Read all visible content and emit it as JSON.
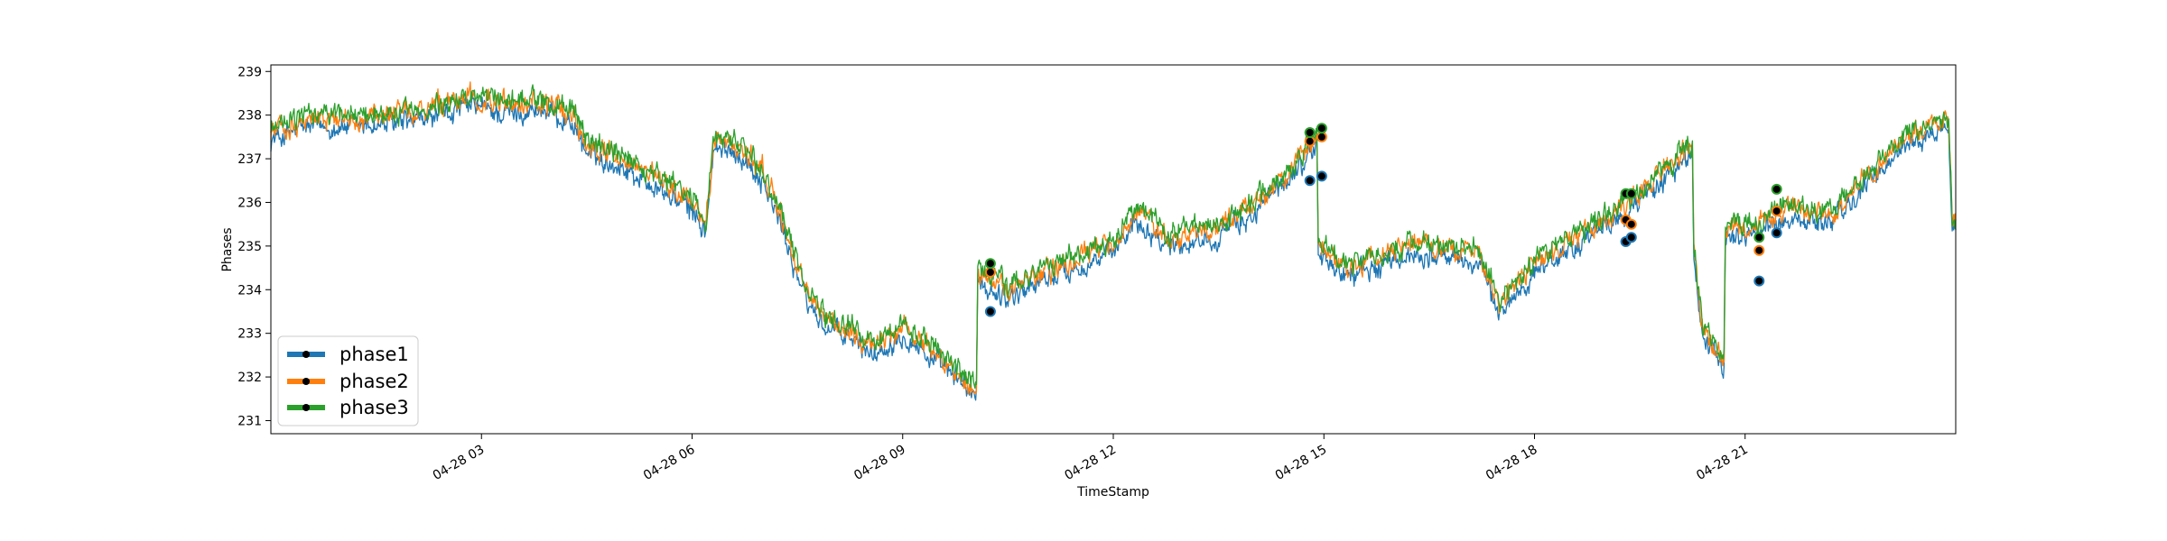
{
  "chart_data": {
    "type": "line",
    "title": "",
    "xlabel": "TimeStamp",
    "ylabel": "Phases",
    "xlim": [
      0,
      24
    ],
    "ylim": [
      230.7,
      239.15
    ],
    "x_ticks": [
      {
        "x": 3,
        "label": "04-28 03"
      },
      {
        "x": 6,
        "label": "04-28 06"
      },
      {
        "x": 9,
        "label": "04-28 09"
      },
      {
        "x": 12,
        "label": "04-28 12"
      },
      {
        "x": 15,
        "label": "04-28 15"
      },
      {
        "x": 18,
        "label": "04-28 18"
      },
      {
        "x": 21,
        "label": "04-28 21"
      }
    ],
    "y_ticks": [
      231,
      232,
      233,
      234,
      235,
      236,
      237,
      238,
      239
    ],
    "grid": false,
    "legend_position": "lower-left",
    "colors": {
      "phase1": "#1f77b4",
      "phase2": "#ff7f0e",
      "phase3": "#2ca02c",
      "marker": "#000000"
    },
    "series": [
      {
        "name": "phase1",
        "color": "#1f77b4",
        "offset": -0.18
      },
      {
        "name": "phase2",
        "color": "#ff7f0e",
        "offset": 0.02
      },
      {
        "name": "phase3",
        "color": "#2ca02c",
        "offset": 0.1
      }
    ],
    "base_curve": [
      [
        0,
        237.6
      ],
      [
        0.5,
        237.9
      ],
      [
        1.0,
        237.9
      ],
      [
        1.5,
        237.95
      ],
      [
        2.0,
        238.0
      ],
      [
        2.5,
        238.2
      ],
      [
        2.9,
        238.4
      ],
      [
        3.3,
        238.2
      ],
      [
        3.8,
        238.3
      ],
      [
        4.3,
        238.0
      ],
      [
        4.5,
        237.3
      ],
      [
        5.0,
        237.0
      ],
      [
        5.5,
        236.5
      ],
      [
        6.0,
        236.0
      ],
      [
        6.2,
        235.5
      ],
      [
        6.3,
        237.3
      ],
      [
        6.6,
        237.4
      ],
      [
        7.0,
        236.7
      ],
      [
        7.3,
        235.5
      ],
      [
        7.6,
        234.0
      ],
      [
        7.9,
        233.3
      ],
      [
        8.3,
        233.0
      ],
      [
        8.6,
        232.7
      ],
      [
        9.0,
        233.2
      ],
      [
        9.4,
        232.6
      ],
      [
        9.8,
        232.1
      ],
      [
        10.05,
        231.7
      ],
      [
        10.07,
        234.3
      ],
      [
        10.5,
        234.0
      ],
      [
        11.0,
        234.4
      ],
      [
        11.5,
        234.7
      ],
      [
        12.0,
        235.0
      ],
      [
        12.3,
        235.8
      ],
      [
        12.8,
        235.2
      ],
      [
        13.5,
        235.4
      ],
      [
        14.0,
        235.9
      ],
      [
        14.5,
        236.7
      ],
      [
        14.9,
        237.5
      ],
      [
        14.92,
        235.0
      ],
      [
        15.3,
        234.5
      ],
      [
        15.8,
        234.7
      ],
      [
        16.3,
        235.0
      ],
      [
        16.8,
        234.9
      ],
      [
        17.2,
        234.8
      ],
      [
        17.5,
        233.6
      ],
      [
        18.0,
        234.6
      ],
      [
        18.6,
        235.2
      ],
      [
        19.2,
        235.8
      ],
      [
        19.6,
        236.4
      ],
      [
        20.0,
        236.9
      ],
      [
        20.25,
        237.3
      ],
      [
        20.27,
        234.9
      ],
      [
        20.4,
        233.0
      ],
      [
        20.7,
        232.4
      ],
      [
        20.72,
        235.4
      ],
      [
        21.2,
        235.5
      ],
      [
        21.6,
        235.8
      ],
      [
        22.2,
        235.7
      ],
      [
        22.7,
        236.5
      ],
      [
        23.3,
        237.5
      ],
      [
        23.9,
        237.9
      ],
      [
        23.95,
        235.6
      ],
      [
        24.0,
        235.5
      ]
    ],
    "marker_points": [
      {
        "x": 10.25,
        "values": [
          233.5,
          234.4,
          234.6
        ]
      },
      {
        "x": 14.8,
        "values": [
          236.5,
          237.4,
          237.6
        ]
      },
      {
        "x": 14.97,
        "values": [
          236.6,
          237.5,
          237.7
        ]
      },
      {
        "x": 19.3,
        "values": [
          235.1,
          235.6,
          236.2
        ]
      },
      {
        "x": 19.38,
        "values": [
          235.2,
          235.5,
          236.2
        ]
      },
      {
        "x": 21.2,
        "values": [
          234.2,
          234.9,
          235.2
        ]
      },
      {
        "x": 21.45,
        "values": [
          235.3,
          235.8,
          236.3
        ]
      }
    ]
  }
}
